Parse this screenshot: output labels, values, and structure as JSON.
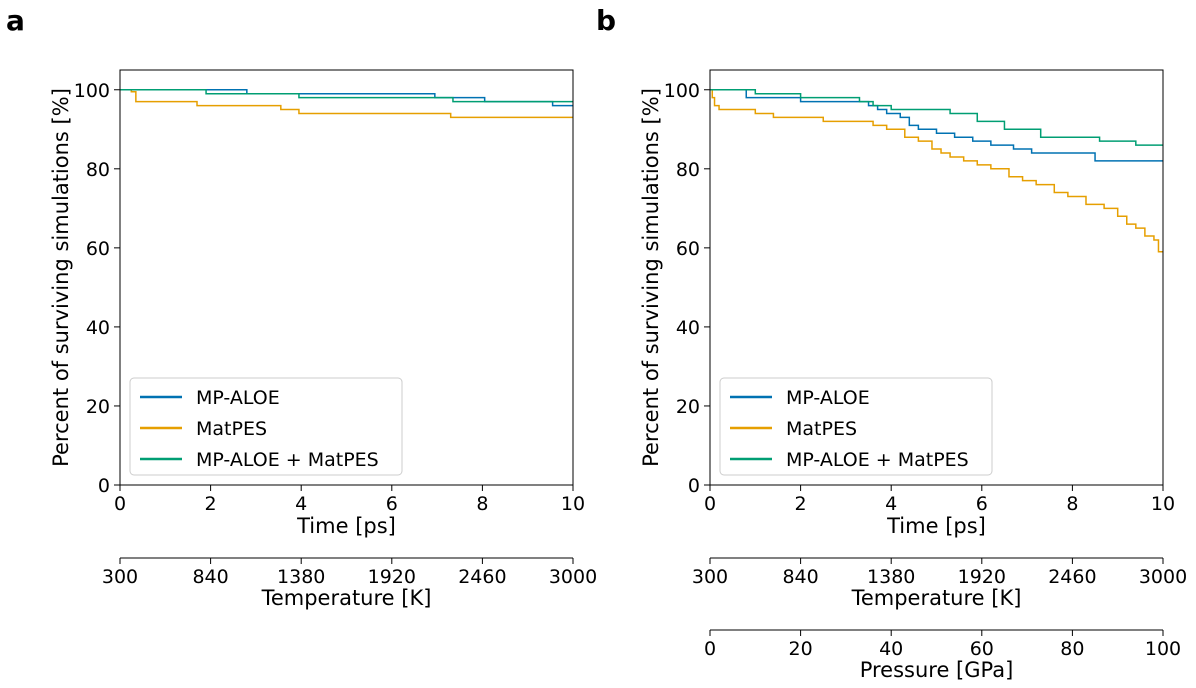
{
  "chart_data": [
    {
      "type": "line",
      "panel_label": "a",
      "xlabel": "Time [ps]",
      "ylabel": "Percent of surviving simulations [%]",
      "xlim": [
        0,
        10
      ],
      "ylim": [
        0,
        105
      ],
      "xticks": [
        "0",
        "2",
        "4",
        "6",
        "8",
        "10"
      ],
      "yticks": [
        "0",
        "20",
        "40",
        "60",
        "80",
        "100"
      ],
      "legend_position": "lower-left",
      "secondary_axes": [
        {
          "label": "Temperature [K]",
          "ticks": [
            "300",
            "840",
            "1380",
            "1920",
            "2460",
            "3000"
          ]
        }
      ],
      "series": [
        {
          "name": "MP-ALOE",
          "color": "#0072b2",
          "x": [
            0,
            2.8,
            2.8,
            3.8,
            3.8,
            6.95,
            6.95,
            8.05,
            8.05,
            9.55,
            9.55,
            10
          ],
          "y": [
            100,
            100,
            99,
            99,
            99,
            99,
            98,
            98,
            97,
            97,
            96,
            96
          ]
        },
        {
          "name": "MatPES",
          "color": "#e69f00",
          "x": [
            0,
            0.25,
            0.35,
            0.35,
            1.7,
            1.7,
            3.55,
            3.55,
            3.95,
            3.95,
            7.3,
            7.3,
            10
          ],
          "y": [
            100,
            99.5,
            98,
            97,
            97,
            96,
            96,
            95,
            95,
            94,
            94,
            93,
            93
          ]
        },
        {
          "name": "MP-ALOE + MatPES",
          "color": "#009e73",
          "x": [
            0,
            1.9,
            1.9,
            3.95,
            3.95,
            7.35,
            7.35,
            10
          ],
          "y": [
            100,
            100,
            99,
            99,
            98,
            98,
            97,
            97
          ]
        }
      ]
    },
    {
      "type": "line",
      "panel_label": "b",
      "xlabel": "Time [ps]",
      "ylabel": "Percent of surviving simulations [%]",
      "xlim": [
        0,
        10
      ],
      "ylim": [
        0,
        105
      ],
      "xticks": [
        "0",
        "2",
        "4",
        "6",
        "8",
        "10"
      ],
      "yticks": [
        "0",
        "20",
        "40",
        "60",
        "80",
        "100"
      ],
      "legend_position": "lower-left",
      "secondary_axes": [
        {
          "label": "Temperature [K]",
          "ticks": [
            "300",
            "840",
            "1380",
            "1920",
            "2460",
            "3000"
          ]
        },
        {
          "label": "Pressure [GPa]",
          "ticks": [
            "0",
            "20",
            "40",
            "60",
            "80",
            "100"
          ]
        }
      ],
      "series": [
        {
          "name": "MP-ALOE",
          "color": "#0072b2",
          "x": [
            0,
            0.7,
            0.8,
            1.95,
            2.0,
            3.3,
            3.5,
            3.7,
            3.9,
            4.2,
            4.4,
            4.6,
            5.0,
            5.4,
            5.8,
            6.2,
            6.7,
            7.1,
            8.3,
            8.5,
            10
          ],
          "y": [
            100,
            100,
            98,
            98,
            97,
            97,
            96,
            95,
            94,
            93,
            91,
            90,
            89,
            88,
            87,
            86,
            85,
            84,
            84,
            82,
            82
          ]
        },
        {
          "name": "MatPES",
          "color": "#e69f00",
          "x": [
            0,
            0.05,
            0.1,
            0.2,
            0.9,
            1.0,
            1.4,
            2.0,
            2.5,
            3.4,
            3.6,
            3.9,
            4.3,
            4.6,
            4.9,
            5.1,
            5.3,
            5.6,
            5.9,
            6.2,
            6.6,
            6.9,
            7.2,
            7.6,
            7.9,
            8.3,
            8.7,
            9.0,
            9.2,
            9.4,
            9.6,
            9.8,
            9.9,
            10
          ],
          "y": [
            100,
            98,
            96,
            95,
            95,
            94,
            93,
            93,
            92,
            92,
            91,
            90,
            88,
            87,
            85,
            84,
            83,
            82,
            81,
            80,
            78,
            77,
            76,
            74,
            73,
            71,
            70,
            68,
            66,
            65,
            63,
            62,
            59,
            59
          ]
        },
        {
          "name": "MP-ALOE + MatPES",
          "color": "#009e73",
          "x": [
            0,
            0.7,
            1.0,
            2.0,
            3.3,
            3.6,
            4.0,
            4.6,
            5.3,
            5.9,
            6.5,
            7.3,
            8.6,
            9.4,
            10
          ],
          "y": [
            100,
            100,
            99,
            98,
            97,
            96,
            95,
            95,
            94,
            92,
            90,
            88,
            87,
            86,
            86
          ]
        }
      ]
    }
  ]
}
